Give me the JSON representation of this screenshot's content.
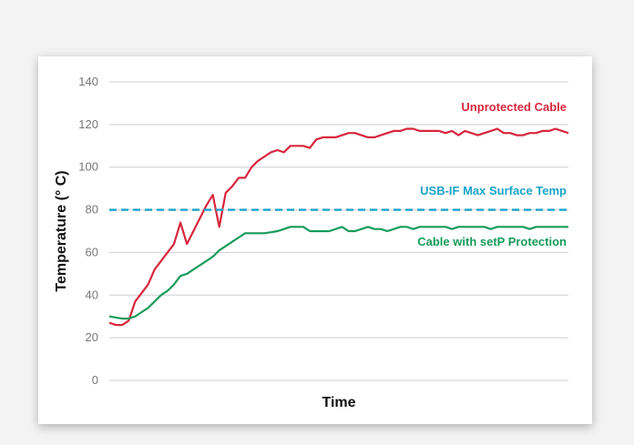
{
  "chart_data": {
    "type": "line",
    "title": "",
    "xlabel": "Time",
    "ylabel": "Temperature (° C)",
    "ylim": [
      0,
      140
    ],
    "yticks": [
      0,
      20,
      40,
      60,
      80,
      100,
      120,
      140
    ],
    "grid": true,
    "legend": "none",
    "series": [
      {
        "name": "Unprotected Cable",
        "color": "#d7263d",
        "x": [
          0,
          1,
          2,
          3,
          4,
          5,
          6,
          7,
          8,
          9,
          10,
          11,
          12,
          13,
          14,
          15,
          16,
          17,
          18,
          19,
          20,
          21,
          22,
          23,
          24,
          25,
          26,
          27,
          28,
          29,
          30,
          31,
          32,
          33,
          34,
          35,
          36,
          37,
          38,
          39,
          40,
          41,
          42,
          43,
          44,
          45,
          46,
          47,
          48,
          49,
          50,
          51,
          52,
          53,
          54,
          55,
          56,
          57,
          58,
          59,
          60,
          61,
          62,
          63,
          64,
          65,
          66,
          67,
          68,
          69,
          70,
          71
        ],
        "values": [
          27,
          26,
          26,
          28,
          37,
          41,
          45,
          52,
          56,
          60,
          64,
          74,
          64,
          70,
          76,
          82,
          87,
          72,
          88,
          91,
          95,
          95,
          100,
          103,
          105,
          107,
          108,
          107,
          110,
          110,
          110,
          109,
          113,
          114,
          114,
          114,
          115,
          116,
          116,
          115,
          114,
          114,
          115,
          116,
          117,
          117,
          118,
          118,
          117,
          117,
          117,
          117,
          116,
          117,
          115,
          117,
          116,
          115,
          116,
          117,
          118,
          116,
          116,
          115,
          115,
          116,
          116,
          117,
          117,
          118,
          117,
          116
        ]
      },
      {
        "name": "USB-IF Max Surface Temp",
        "color": "#1aa3c8",
        "style": "dashed",
        "x": [
          0,
          71
        ],
        "values": [
          80,
          80
        ]
      },
      {
        "name": "Cable with setP Protection",
        "color": "#179c5a",
        "x": [
          0,
          1,
          2,
          3,
          4,
          5,
          6,
          7,
          8,
          9,
          10,
          11,
          12,
          13,
          14,
          15,
          16,
          17,
          18,
          19,
          20,
          21,
          22,
          23,
          24,
          25,
          26,
          27,
          28,
          29,
          30,
          31,
          32,
          33,
          34,
          35,
          36,
          37,
          38,
          39,
          40,
          41,
          42,
          43,
          44,
          45,
          46,
          47,
          48,
          49,
          50,
          51,
          52,
          53,
          54,
          55,
          56,
          57,
          58,
          59,
          60,
          61,
          62,
          63,
          64,
          65,
          66,
          67,
          68,
          69,
          70,
          71
        ],
        "values": [
          30,
          29.5,
          29,
          29,
          30,
          32,
          34,
          37,
          40,
          42,
          45,
          49,
          50,
          52,
          54,
          56,
          58,
          61,
          63,
          65,
          67,
          69,
          69,
          69,
          69,
          69.5,
          70,
          71,
          72,
          72,
          72,
          70,
          70,
          70,
          70,
          71,
          72,
          70,
          70,
          71,
          72,
          71,
          71,
          70,
          71,
          72,
          72,
          71,
          72,
          72,
          72,
          72,
          72,
          71,
          72,
          72,
          72,
          72,
          72,
          71,
          72,
          72,
          72,
          72,
          72,
          71,
          72,
          72,
          72,
          72,
          72,
          72
        ]
      }
    ],
    "annotations": [
      {
        "text": "Unprotected Cable",
        "series": 0
      },
      {
        "text": "USB-IF Max Surface Temp",
        "series": 1
      },
      {
        "text": "Cable with setP Protection",
        "series": 2
      }
    ]
  }
}
